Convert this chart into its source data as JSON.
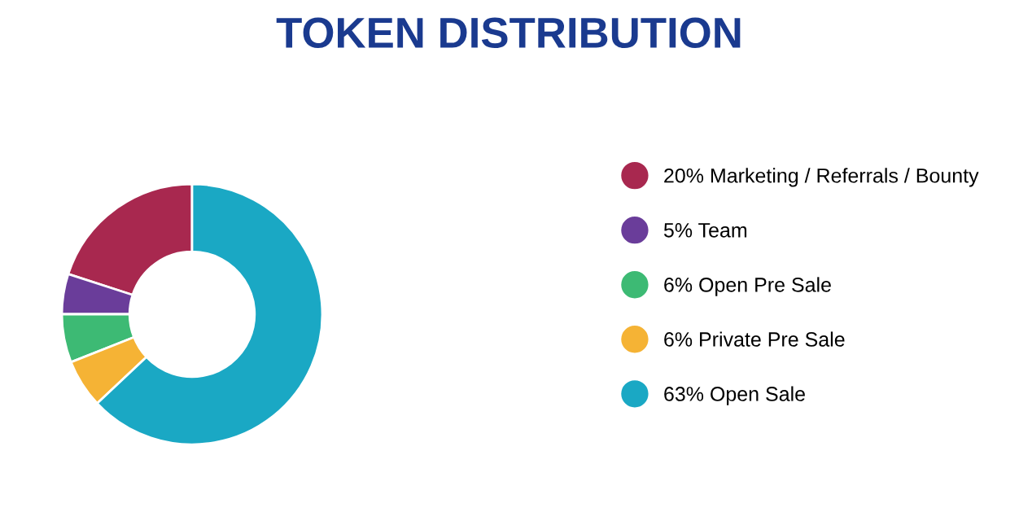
{
  "chart_data": {
    "type": "donut",
    "title": "TOKEN DISTRIBUTION",
    "categories": [
      "20% Marketing / Referrals / Bounty",
      "5% Team",
      "6% Open Pre Sale",
      "6% Private Pre Sale",
      "63% Open Sale"
    ],
    "values": [
      20,
      5,
      6,
      6,
      63
    ],
    "colors": [
      "#a8284f",
      "#6a3d9a",
      "#3dba74",
      "#f5b335",
      "#1aa8c4"
    ],
    "legend": "right"
  }
}
